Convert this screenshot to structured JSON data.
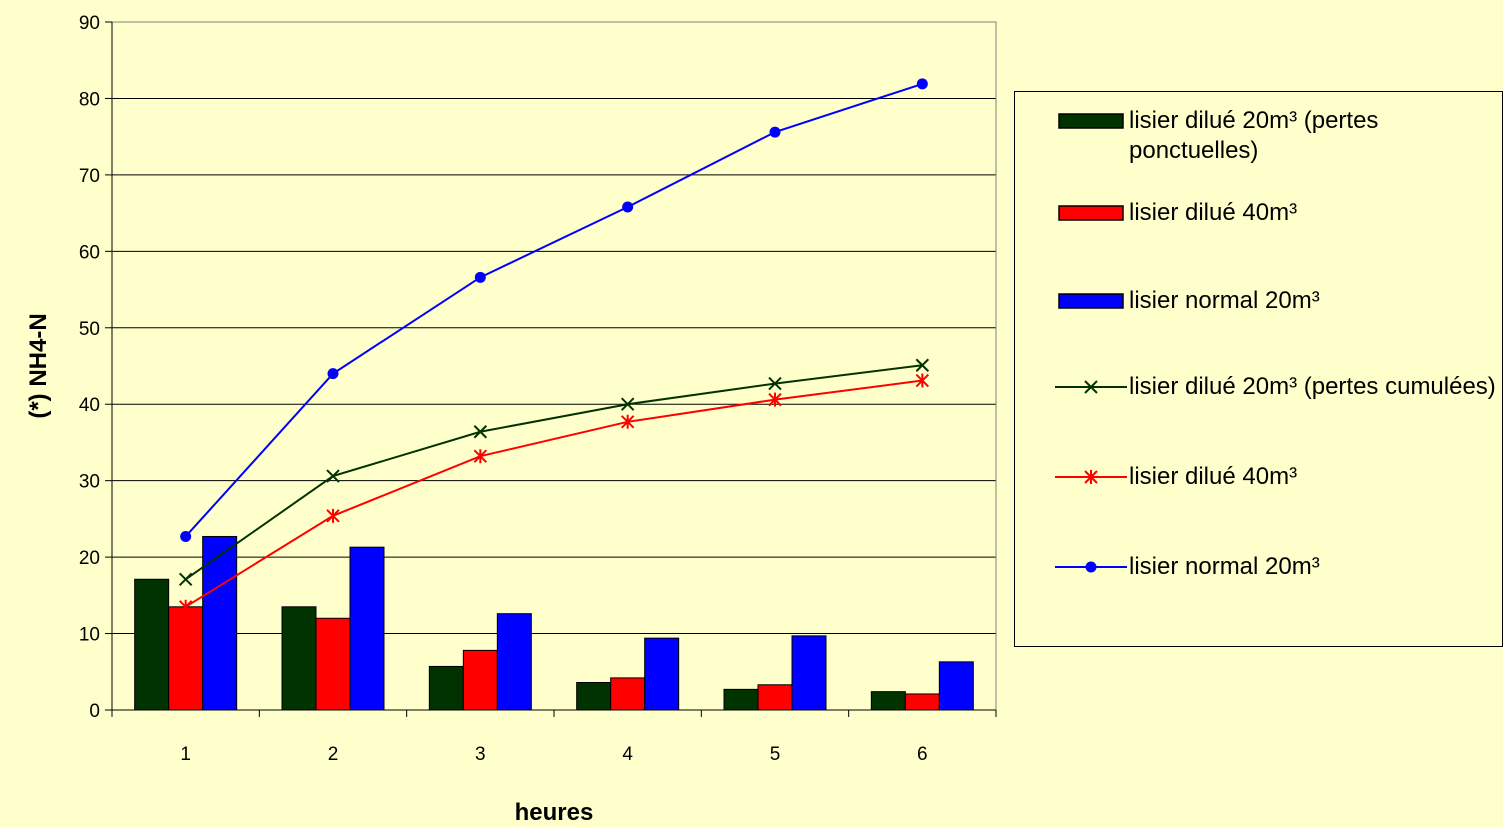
{
  "chart_data": {
    "type": "bar+line",
    "xlabel": "heures",
    "ylabel": "(*) NH4-N",
    "ylim": [
      0,
      90
    ],
    "yticks": [
      0,
      10,
      20,
      30,
      40,
      50,
      60,
      70,
      80,
      90
    ],
    "categories": [
      "1",
      "2",
      "3",
      "4",
      "5",
      "6"
    ],
    "grid": "horizontal",
    "legend_position": "right",
    "bar_series": [
      {
        "name": "lisier dilué 20m³ (pertes ponctuelles)",
        "color": "#003300",
        "values": [
          17.1,
          13.5,
          5.7,
          3.6,
          2.7,
          2.4
        ]
      },
      {
        "name": "lisier dilué 40m³",
        "color": "#FF0000",
        "values": [
          13.5,
          12.0,
          7.8,
          4.2,
          3.3,
          2.1
        ]
      },
      {
        "name": "lisier normal 20m³",
        "color": "#0000FF",
        "values": [
          22.7,
          21.3,
          12.6,
          9.4,
          9.7,
          6.3
        ]
      }
    ],
    "line_series": [
      {
        "name": "lisier dilué 20m³ (pertes cumulées)",
        "color": "#003300",
        "marker": "x",
        "values": [
          17.1,
          30.6,
          36.4,
          40.0,
          42.7,
          45.1
        ]
      },
      {
        "name": "lisier dilué 40m³",
        "color": "#FF0000",
        "marker": "asterisk",
        "values": [
          13.5,
          25.4,
          33.2,
          37.7,
          40.6,
          43.1
        ]
      },
      {
        "name": "lisier normal 20m³",
        "color": "#0000FF",
        "marker": "circle",
        "values": [
          22.7,
          44.0,
          56.6,
          65.8,
          75.6,
          81.9
        ]
      }
    ]
  },
  "legend": {
    "items": [
      {
        "label": "lisier dilué 20m³ (pertes ponctuelles)",
        "kind": "bar",
        "color": "#003300"
      },
      {
        "label": "lisier dilué 40m³",
        "kind": "bar",
        "color": "#FF0000"
      },
      {
        "label": "lisier normal 20m³",
        "kind": "bar",
        "color": "#0000FF"
      },
      {
        "label": "lisier dilué 20m³ (pertes cumulées)",
        "kind": "line",
        "color": "#003300",
        "marker": "x"
      },
      {
        "label": "lisier dilué 40m³",
        "kind": "line",
        "color": "#FF0000",
        "marker": "asterisk"
      },
      {
        "label": "lisier normal 20m³",
        "kind": "line",
        "color": "#0000FF",
        "marker": "circle"
      }
    ]
  },
  "colors": {
    "background": "#FFFFCC",
    "gridline": "#000000"
  }
}
